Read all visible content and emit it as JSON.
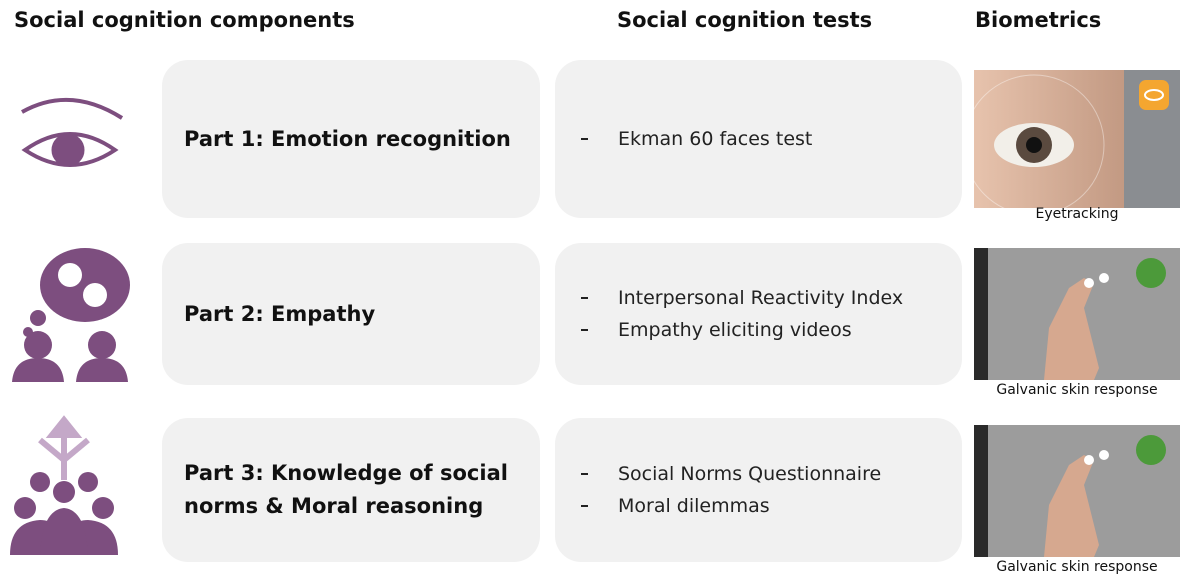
{
  "headers": [
    "Social cognition components",
    "Social cognition tests",
    "Biometrics"
  ],
  "rows": [
    {
      "component": [
        "Part 1: Emotion recognition"
      ],
      "tests": [
        "Ekman 60 faces test"
      ],
      "biometric": "Eyetracking"
    },
    {
      "component": [
        "Part 2: Empathy"
      ],
      "tests": [
        "Interpersonal Reactivity Index",
        "Empathy eliciting videos"
      ],
      "biometric": "Galvanic skin response"
    },
    {
      "component": [
        "Part 3: Knowledge of social",
        "norms & Moral reasoning"
      ],
      "tests": [
        "Social Norms Questionnaire",
        "Moral dilemmas"
      ],
      "biometric": "Galvanic skin response"
    }
  ]
}
